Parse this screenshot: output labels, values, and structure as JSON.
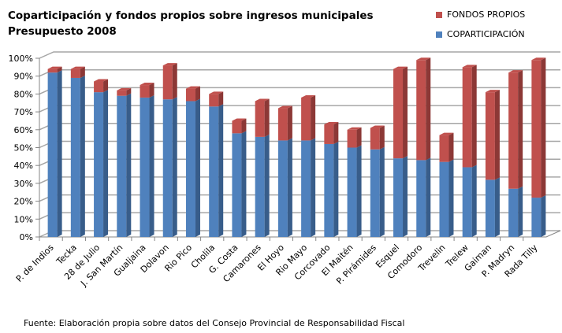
{
  "chart_data": {
    "type": "bar",
    "stacked": true,
    "title": "Coparticipación y fondos propios sobre ingresos municipales",
    "subtitle": "Presupuesto 2008",
    "xlabel": "",
    "ylabel": "",
    "ylim": [
      0,
      100
    ],
    "yticks": [
      "0%",
      "10%",
      "20%",
      "30%",
      "40%",
      "50%",
      "60%",
      "70%",
      "80%",
      "90%",
      "100%"
    ],
    "grid": true,
    "legend_position": "top-right",
    "categories": [
      "P. de Indios",
      "Tecka",
      "28 de Julio",
      "J. San Martín",
      "Gualjaina",
      "Dolavon",
      "Rio Pico",
      "Cholila",
      "G. Costa",
      "Camarones",
      "El Hoyo",
      "Rio Mayo",
      "Corcovado",
      "El Maitén",
      "P. Pirámides",
      "Esquel",
      "Comodoro",
      "Trevelin",
      "Trelew",
      "Gaiman",
      "P. Madryn",
      "Rada Tilly"
    ],
    "series": [
      {
        "name": "COPARTICIPACIÓN",
        "color": "#4F81BD",
        "side": "#385D8A",
        "values": [
          92,
          89,
          81,
          79,
          78,
          77,
          76,
          73,
          58,
          56,
          54,
          54,
          52,
          50,
          49,
          44,
          43,
          42,
          39,
          32,
          27,
          22
        ]
      },
      {
        "name": "FONDOS PROPIOS",
        "color": "#C0504D",
        "side": "#8C3836",
        "values": [
          2,
          5,
          6,
          3,
          7,
          19,
          7,
          7,
          7,
          20,
          18,
          24,
          11,
          10,
          12,
          50,
          56,
          15,
          56,
          49,
          65,
          77
        ]
      }
    ]
  },
  "footnote": "Fuente: Elaboración propia sobre datos del Consejo Provincial de Responsabilidad  Fiscal"
}
